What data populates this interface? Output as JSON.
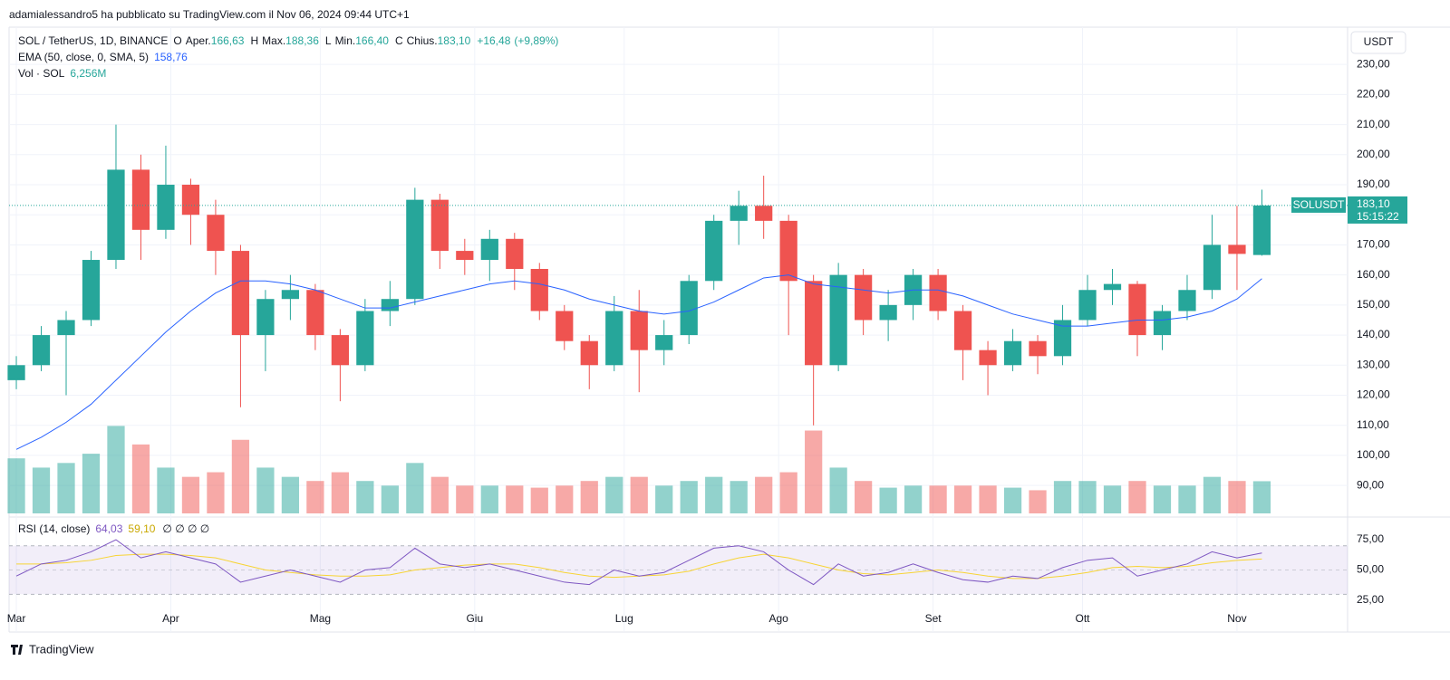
{
  "header": {
    "published": "adamialessandro5 ha pubblicato su TradingView.com il Nov 06, 2024 09:44 UTC+1",
    "brand": "TradingView"
  },
  "chart_data": {
    "type": "candlestick",
    "title": "SOL / TetherUS, 1D, BINANCE",
    "legend_ohlc": [
      {
        "name": "O",
        "label": "Aper.",
        "value": 166.63,
        "value_label": "166,63"
      },
      {
        "name": "H",
        "label": "Max.",
        "value": 188.36,
        "value_label": "188,36"
      },
      {
        "name": "L",
        "label": "Min.",
        "value": 166.4,
        "value_label": "166,40"
      },
      {
        "name": "C",
        "label": "Chius.",
        "value": 183.1,
        "value_label": "183,10"
      }
    ],
    "change": {
      "value": 16.48,
      "label": "+16,48"
    },
    "change_pct": {
      "value": 9.89,
      "label": "(+9,89%)"
    },
    "currency": "USDT",
    "x": [
      0,
      5,
      10,
      15,
      20,
      25,
      30,
      35,
      40,
      45,
      50,
      55,
      60,
      65,
      70,
      75,
      80,
      85,
      90,
      95,
      100,
      105,
      110,
      115,
      120,
      125,
      130,
      135,
      140,
      145,
      150,
      155,
      160,
      165,
      170,
      175,
      180,
      185,
      190,
      195,
      200,
      205,
      210,
      215,
      220,
      225,
      230,
      235,
      240,
      245,
      250
    ],
    "xlim": [
      -1.46,
      267.2
    ],
    "xticks": [
      {
        "value": 0,
        "label": "Mar"
      },
      {
        "value": 31,
        "label": "Apr"
      },
      {
        "value": 61,
        "label": "Mag"
      },
      {
        "value": 92,
        "label": "Giu"
      },
      {
        "value": 122,
        "label": "Lug"
      },
      {
        "value": 153,
        "label": "Ago"
      },
      {
        "value": 184,
        "label": "Set"
      },
      {
        "value": 214,
        "label": "Ott"
      },
      {
        "value": 245,
        "label": "Nov"
      }
    ],
    "open": [
      125,
      130,
      140,
      145,
      165,
      195,
      175,
      190,
      180,
      168,
      140,
      152,
      155,
      140,
      130,
      148,
      152,
      185,
      168,
      165,
      172,
      162,
      148,
      138,
      130,
      148,
      135,
      140,
      158,
      178,
      183,
      178,
      158,
      130,
      160,
      145,
      150,
      160,
      148,
      135,
      130,
      138,
      133,
      145,
      155,
      157,
      140,
      148,
      155,
      170,
      166.63
    ],
    "high": [
      133,
      143,
      148,
      168,
      210,
      200,
      203,
      192,
      185,
      170,
      155,
      160,
      157,
      142,
      152,
      158,
      189,
      187,
      172,
      175,
      174,
      164,
      150,
      140,
      153,
      155,
      145,
      160,
      180,
      188,
      193,
      180,
      160,
      164,
      162,
      155,
      162,
      162,
      150,
      138,
      142,
      140,
      150,
      160,
      162,
      158,
      150,
      160,
      180,
      183,
      188.36
    ],
    "low": [
      122,
      128,
      120,
      143,
      162,
      165,
      172,
      170,
      160,
      116,
      128,
      145,
      135,
      118,
      128,
      143,
      150,
      162,
      160,
      158,
      155,
      145,
      135,
      122,
      128,
      121,
      130,
      137,
      155,
      170,
      172,
      140,
      110,
      128,
      140,
      138,
      145,
      145,
      125,
      120,
      128,
      127,
      130,
      143,
      150,
      133,
      135,
      145,
      152,
      155,
      166.4
    ],
    "close": [
      130,
      140,
      145,
      165,
      195,
      175,
      190,
      180,
      168,
      140,
      152,
      155,
      140,
      130,
      148,
      152,
      185,
      168,
      165,
      172,
      162,
      148,
      138,
      130,
      148,
      135,
      140,
      158,
      178,
      183,
      178,
      158,
      130,
      160,
      145,
      150,
      160,
      148,
      135,
      130,
      138,
      133,
      145,
      155,
      157,
      140,
      148,
      155,
      170,
      167,
      183.1
    ],
    "ylim": [
      80.7,
      242.4
    ],
    "yticks": [
      {
        "value": 90,
        "label": "90,00"
      },
      {
        "value": 100,
        "label": "100,00"
      },
      {
        "value": 110,
        "label": "110,00"
      },
      {
        "value": 120,
        "label": "120,00"
      },
      {
        "value": 130,
        "label": "130,00"
      },
      {
        "value": 140,
        "label": "140,00"
      },
      {
        "value": 150,
        "label": "150,00"
      },
      {
        "value": 160,
        "label": "160,00"
      },
      {
        "value": 170,
        "label": "170,00"
      },
      {
        "value": 180,
        "label": "180,00"
      },
      {
        "value": 190,
        "label": "190,00"
      },
      {
        "value": 200,
        "label": "200,00"
      },
      {
        "value": 210,
        "label": "210,00"
      },
      {
        "value": 220,
        "label": "220,00"
      },
      {
        "value": 230,
        "label": "230,00"
      }
    ],
    "last_price": {
      "value": 183.1,
      "label": "183,10"
    },
    "last_symbol": "SOLUSDT",
    "countdown": "15:15:22",
    "up_color": "#26a69a",
    "down_color": "#ef5350",
    "ema": {
      "name": "EMA (50, close, 0, SMA, 5)",
      "value_label": "158,76",
      "color": "#2962ff",
      "values": [
        102,
        106,
        111,
        117,
        125,
        133,
        141,
        148,
        154,
        158,
        158,
        157,
        155,
        152,
        149,
        149,
        151,
        153,
        155,
        157,
        158,
        157,
        155,
        152,
        150,
        148,
        147,
        148,
        151,
        155,
        159,
        160,
        157,
        156,
        155,
        154,
        155,
        155,
        153,
        150,
        147,
        145,
        143,
        143,
        144,
        145,
        145,
        146,
        148,
        152,
        158.76
      ]
    },
    "volume": {
      "name": "Vol · SOL",
      "value_label": "6,256M",
      "ylim": [
        0,
        22
      ],
      "values": [
        10.7,
        8.9,
        9.8,
        11.6,
        17,
        13.4,
        8.9,
        7.1,
        8,
        14.3,
        8.9,
        7.1,
        6.3,
        8,
        6.3,
        5.4,
        9.8,
        7.1,
        5.4,
        5.4,
        5.4,
        5,
        5.4,
        6.3,
        7.1,
        7.1,
        5.4,
        6.3,
        7.1,
        6.3,
        7.1,
        8,
        16.1,
        8.9,
        6.3,
        5,
        5.4,
        5.4,
        5.4,
        5.4,
        5,
        4.5,
        6.3,
        6.3,
        5.4,
        6.3,
        5.4,
        5.4,
        7.1,
        6.3,
        6.256
      ]
    },
    "rsi": {
      "name": "RSI (14, close)",
      "value_label": "64,03",
      "ma_label": "59,10",
      "extra": "∅ ∅ ∅ ∅",
      "color": "#7e57c2",
      "ma_color": "#f7d434",
      "ylim": [
        19.8,
        90.7
      ],
      "band": [
        30,
        70
      ],
      "yticks": [
        {
          "value": 25,
          "label": "25,00"
        },
        {
          "value": 50,
          "label": "50,00"
        },
        {
          "value": 75,
          "label": "75,00"
        }
      ],
      "values": [
        45,
        55,
        58,
        65,
        75,
        60,
        65,
        60,
        55,
        40,
        45,
        50,
        45,
        40,
        50,
        52,
        68,
        55,
        52,
        55,
        50,
        45,
        40,
        38,
        50,
        45,
        48,
        58,
        68,
        70,
        65,
        50,
        38,
        55,
        45,
        48,
        55,
        48,
        42,
        40,
        45,
        43,
        52,
        58,
        60,
        45,
        50,
        55,
        65,
        60,
        64.03
      ],
      "ma": [
        55,
        55,
        56,
        58,
        62,
        63,
        63,
        62,
        60,
        55,
        50,
        48,
        46,
        45,
        45,
        46,
        50,
        52,
        54,
        55,
        55,
        52,
        48,
        45,
        44,
        45,
        46,
        49,
        55,
        60,
        63,
        60,
        55,
        50,
        47,
        46,
        48,
        50,
        48,
        45,
        43,
        43,
        45,
        48,
        52,
        53,
        52,
        53,
        56,
        58,
        59.1
      ]
    }
  }
}
